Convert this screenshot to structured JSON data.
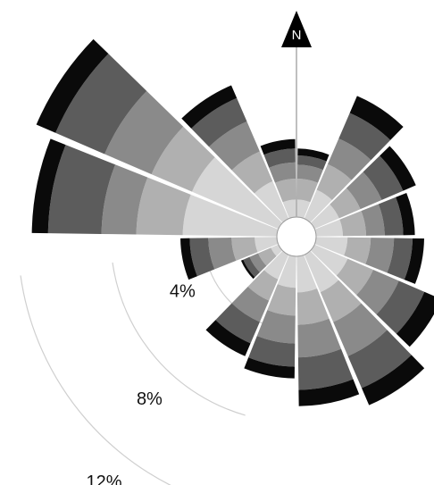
{
  "chart_data": {
    "type": "windrose",
    "annotations": [
      "N"
    ],
    "ylim": [
      0,
      12.5
    ],
    "yticks": [
      {
        "value": 4,
        "label": "4%"
      },
      {
        "value": 8,
        "label": "8%"
      },
      {
        "value": 12,
        "label": "12%"
      }
    ],
    "series": [
      {
        "color": "#d6d6d6",
        "values": [
          1.6,
          2.2,
          2.0,
          2.0,
          2.2,
          2.4,
          2.6,
          2.4,
          2.2,
          2.0,
          1.2,
          1.8,
          4.9,
          4.9,
          2.6,
          1.6
        ]
      },
      {
        "color": "#b0b0b0",
        "values": [
          0.9,
          1.2,
          1.0,
          1.0,
          1.0,
          1.2,
          1.4,
          1.4,
          1.2,
          1.0,
          0.6,
          1.0,
          2.0,
          1.9,
          1.4,
          0.9
        ]
      },
      {
        "color": "#8a8a8a",
        "values": [
          0.6,
          1.2,
          1.0,
          0.8,
          1.0,
          1.2,
          1.6,
          1.4,
          1.2,
          1.0,
          0.4,
          1.0,
          1.5,
          2.2,
          1.4,
          0.7
        ]
      },
      {
        "color": "#5c5c5c",
        "values": [
          0.4,
          1.2,
          1.0,
          0.8,
          0.8,
          1.2,
          1.5,
          1.4,
          1.0,
          1.0,
          0.3,
          0.8,
          2.3,
          2.3,
          1.1,
          0.6
        ]
      },
      {
        "color": "#0a0a0a",
        "values": [
          0.3,
          0.8,
          0.6,
          0.5,
          0.5,
          0.8,
          0.8,
          0.7,
          0.5,
          0.6,
          0.1,
          0.4,
          0.7,
          0.9,
          0.6,
          0.4
        ]
      }
    ]
  }
}
